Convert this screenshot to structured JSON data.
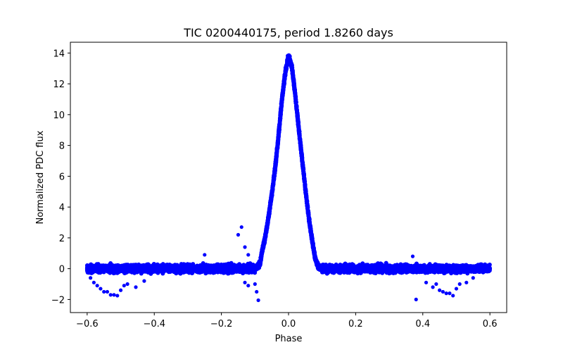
{
  "chart_data": {
    "type": "scatter",
    "title": "TIC 0200440175, period 1.8260 days",
    "xlabel": "Phase",
    "ylabel": "Normalized PDC flux",
    "xlim": [
      -0.65,
      0.65
    ],
    "ylim": [
      -2.85,
      14.7
    ],
    "xticks": [
      -0.6,
      -0.4,
      -0.2,
      0.0,
      0.2,
      0.4,
      0.6
    ],
    "xtick_labels": [
      "−0.6",
      "−0.4",
      "−0.2",
      "0.0",
      "0.2",
      "0.4",
      "0.6"
    ],
    "yticks": [
      -2,
      0,
      2,
      4,
      6,
      8,
      10,
      12,
      14
    ],
    "ytick_labels": [
      "−2",
      "0",
      "2",
      "4",
      "6",
      "8",
      "10",
      "12",
      "14"
    ],
    "grid": false,
    "marker_color": "#0000ff",
    "series": [
      {
        "profile": [
          [
            -0.6,
            0.0
          ],
          [
            -0.1,
            0.0
          ],
          [
            -0.085,
            0.3
          ],
          [
            -0.08,
            1.0
          ],
          [
            -0.07,
            2.0
          ],
          [
            -0.06,
            3.3
          ],
          [
            -0.05,
            4.8
          ],
          [
            -0.04,
            6.5
          ],
          [
            -0.03,
            8.6
          ],
          [
            -0.02,
            10.9
          ],
          [
            -0.01,
            12.7
          ],
          [
            0.0,
            13.8
          ],
          [
            0.01,
            13.1
          ],
          [
            0.02,
            11.3
          ],
          [
            0.03,
            9.2
          ],
          [
            0.04,
            7.2
          ],
          [
            0.05,
            5.2
          ],
          [
            0.06,
            3.4
          ],
          [
            0.07,
            1.9
          ],
          [
            0.08,
            0.6
          ],
          [
            0.09,
            0.1
          ],
          [
            0.1,
            0.0
          ],
          [
            0.6,
            0.0
          ]
        ],
        "outliers": [
          [
            -0.59,
            -0.6
          ],
          [
            -0.58,
            -0.9
          ],
          [
            -0.57,
            -1.1
          ],
          [
            -0.56,
            -1.3
          ],
          [
            -0.55,
            -1.5
          ],
          [
            -0.54,
            -1.5
          ],
          [
            -0.53,
            -1.7
          ],
          [
            -0.52,
            -1.7
          ],
          [
            -0.51,
            -1.75
          ],
          [
            -0.5,
            -1.4
          ],
          [
            -0.49,
            -1.1
          ],
          [
            -0.48,
            -1.0
          ],
          [
            -0.455,
            -1.2
          ],
          [
            -0.43,
            -0.8
          ],
          [
            -0.25,
            0.9
          ],
          [
            -0.15,
            2.2
          ],
          [
            -0.14,
            2.7
          ],
          [
            -0.13,
            1.4
          ],
          [
            -0.12,
            0.9
          ],
          [
            -0.13,
            -0.9
          ],
          [
            -0.12,
            -1.1
          ],
          [
            -0.1,
            -1.0
          ],
          [
            -0.095,
            -1.5
          ],
          [
            -0.09,
            -2.05
          ],
          [
            0.37,
            0.8
          ],
          [
            0.38,
            -2.0
          ],
          [
            0.41,
            -0.9
          ],
          [
            0.43,
            -1.2
          ],
          [
            0.44,
            -1.0
          ],
          [
            0.45,
            -1.4
          ],
          [
            0.46,
            -1.5
          ],
          [
            0.47,
            -1.6
          ],
          [
            0.48,
            -1.6
          ],
          [
            0.49,
            -1.75
          ],
          [
            0.5,
            -1.3
          ],
          [
            0.51,
            -1.0
          ],
          [
            0.53,
            -0.9
          ],
          [
            0.55,
            -0.6
          ]
        ]
      }
    ]
  }
}
